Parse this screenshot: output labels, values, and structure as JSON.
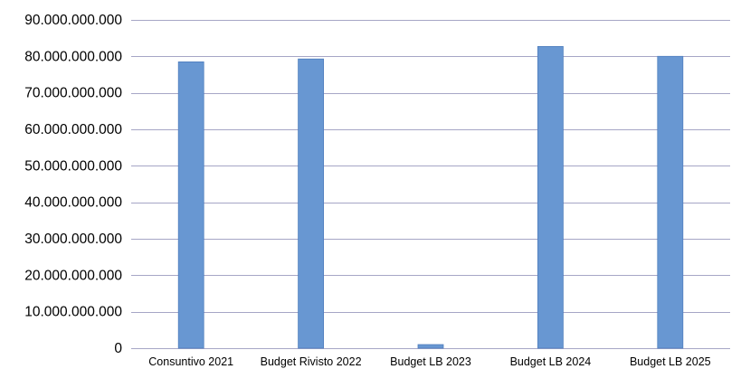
{
  "chart_data": {
    "type": "bar",
    "title": "",
    "xlabel": "",
    "ylabel": "",
    "categories": [
      "Consuntivo 2021",
      "Budget Rivisto 2022",
      "Budget LB 2023",
      "Budget LB 2024",
      "Budget LB 2025"
    ],
    "values": [
      78500000000,
      79300000000,
      1000000000,
      82700000000,
      80000000000
    ],
    "ylim": [
      0,
      90000000000
    ],
    "yticks": [
      0,
      10000000000,
      20000000000,
      30000000000,
      40000000000,
      50000000000,
      60000000000,
      70000000000,
      80000000000,
      90000000000
    ],
    "ytick_labels": [
      "0",
      "10.000.000.000",
      "20.000.000.000",
      "30.000.000.000",
      "40.000.000.000",
      "50.000.000.000",
      "60.000.000.000",
      "70.000.000.000",
      "80.000.000.000",
      "90.000.000.000"
    ],
    "grid": true,
    "legend": "none",
    "colors": {
      "bar_fill": "#6897D2",
      "bar_stroke": "#4F7EBD",
      "gridline": "#A6A6C6",
      "axis": "#A6A6C6"
    }
  }
}
